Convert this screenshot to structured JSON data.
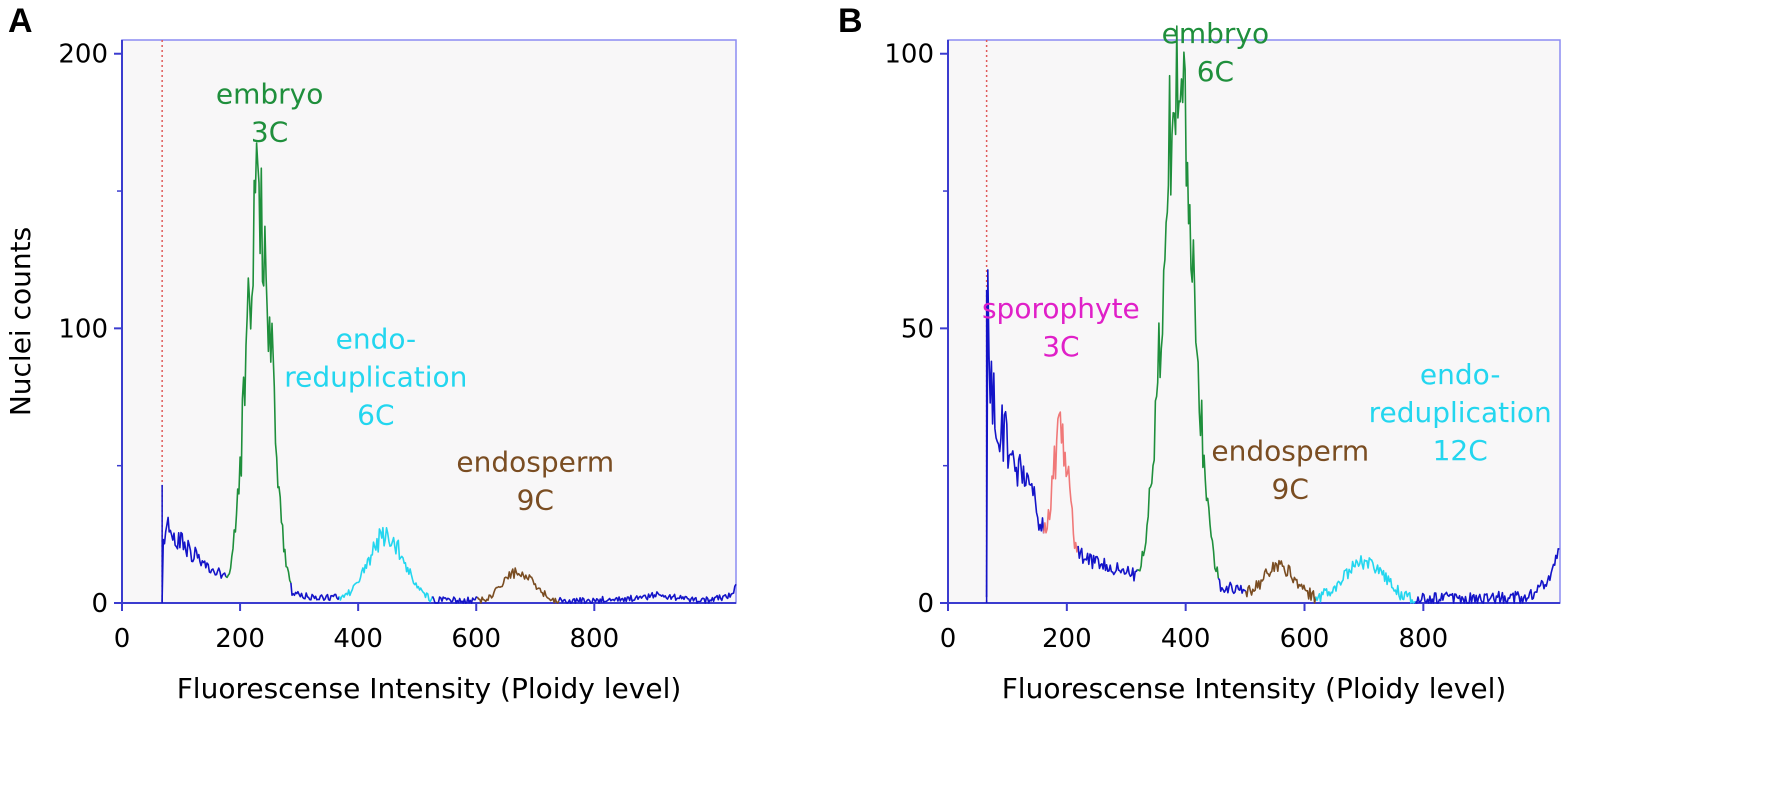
{
  "colors": {
    "background": "#f8f7f8",
    "frame": "#8c8cf2",
    "axis": "#3b3ccf",
    "gate": "#e05a5a",
    "baseline": "#1414c8",
    "embryo": "#1f8f3c",
    "endoreduplication": "#23d6ef",
    "endosperm": "#7a4d22",
    "sporophyte": "#e020c8",
    "sporophyte_peak": "#f07878"
  },
  "chart_data": [
    {
      "type": "area",
      "panel_label": "A",
      "xlabel": "Fluorescense Intensity (Ploidy level)",
      "ylabel": "Nuclei counts",
      "xlim": [
        0,
        1040
      ],
      "ylim": [
        0,
        205
      ],
      "x_ticks": [
        0,
        200,
        400,
        600,
        800
      ],
      "y_ticks": [
        0,
        100,
        200
      ],
      "y_tick_labels": [
        "0",
        "100",
        "200"
      ],
      "y_minor_ticks": [
        50,
        150
      ],
      "gate_x": 68,
      "baseline_points": [
        [
          68,
          0
        ],
        [
          68,
          43
        ],
        [
          70,
          26
        ],
        [
          80,
          27
        ],
        [
          95,
          23
        ],
        [
          110,
          20
        ],
        [
          130,
          16
        ],
        [
          150,
          13
        ],
        [
          170,
          10
        ],
        [
          190,
          8
        ],
        [
          205,
          7
        ],
        [
          225,
          6
        ],
        [
          260,
          6
        ],
        [
          280,
          4
        ],
        [
          300,
          3
        ],
        [
          330,
          2
        ],
        [
          360,
          2
        ],
        [
          390,
          2
        ],
        [
          420,
          2
        ],
        [
          450,
          1.5
        ],
        [
          480,
          1
        ],
        [
          520,
          1
        ],
        [
          560,
          1
        ],
        [
          600,
          1
        ],
        [
          640,
          1
        ],
        [
          680,
          0.8
        ],
        [
          720,
          0.8
        ],
        [
          760,
          0.8
        ],
        [
          800,
          1
        ],
        [
          840,
          1.5
        ],
        [
          880,
          2
        ],
        [
          910,
          3
        ],
        [
          940,
          2
        ],
        [
          970,
          1
        ],
        [
          1000,
          1
        ],
        [
          1030,
          3
        ],
        [
          1040,
          6
        ]
      ],
      "peaks": [
        {
          "key": "embryo",
          "label_lines": [
            "embryo",
            "3C"
          ],
          "ploidy": "3C",
          "center": 232,
          "half_width": 55,
          "height": 145,
          "label_x": 250,
          "label_y": 168
        },
        {
          "key": "endoreduplication",
          "label_lines": [
            "endo-",
            "reduplication",
            "6C"
          ],
          "ploidy": "6C",
          "center": 448,
          "half_width": 80,
          "height": 24,
          "label_x": 430,
          "label_y": 65
        },
        {
          "key": "endosperm",
          "label_lines": [
            "endosperm",
            "9C"
          ],
          "ploidy": "9C",
          "center": 672,
          "half_width": 70,
          "height": 11,
          "label_x": 700,
          "label_y": 34
        }
      ]
    },
    {
      "type": "area",
      "panel_label": "B",
      "xlabel": "Fluorescense Intensity (Ploidy level)",
      "ylabel": "",
      "xlim": [
        0,
        1030
      ],
      "ylim": [
        0,
        102.5
      ],
      "x_ticks": [
        0,
        200,
        400,
        600,
        800
      ],
      "y_ticks": [
        0,
        50,
        100
      ],
      "y_tick_labels": [
        "0",
        "50",
        "100"
      ],
      "y_minor_ticks": [
        25,
        75
      ],
      "gate_x": 65,
      "baseline_points": [
        [
          65,
          0
        ],
        [
          65,
          57
        ],
        [
          70,
          45
        ],
        [
          75,
          38
        ],
        [
          85,
          33
        ],
        [
          100,
          29
        ],
        [
          120,
          25
        ],
        [
          140,
          20
        ],
        [
          155,
          15
        ],
        [
          170,
          12
        ],
        [
          210,
          10
        ],
        [
          230,
          8
        ],
        [
          260,
          7
        ],
        [
          290,
          6
        ],
        [
          320,
          5
        ],
        [
          335,
          6
        ],
        [
          460,
          3
        ],
        [
          480,
          2.5
        ],
        [
          520,
          2
        ],
        [
          560,
          1.5
        ],
        [
          600,
          1
        ],
        [
          640,
          1
        ],
        [
          680,
          1
        ],
        [
          720,
          0.8
        ],
        [
          760,
          0.8
        ],
        [
          800,
          0.8
        ],
        [
          840,
          0.8
        ],
        [
          880,
          0.8
        ],
        [
          920,
          1
        ],
        [
          960,
          1
        ],
        [
          990,
          2
        ],
        [
          1010,
          4
        ],
        [
          1025,
          8
        ],
        [
          1030,
          10
        ]
      ],
      "peaks": [
        {
          "key": "sporophyte",
          "label_lines": [
            "sporophyte",
            "3C"
          ],
          "ploidy": "3C",
          "center": 190,
          "half_width": 38,
          "height": 27,
          "label_x": 190,
          "label_y": 45
        },
        {
          "key": "embryo",
          "label_lines": [
            "embryo",
            "6C"
          ],
          "ploidy": "6C",
          "center": 388,
          "half_width": 68,
          "height": 95,
          "label_x": 450,
          "label_y": 95
        },
        {
          "key": "endosperm",
          "label_lines": [
            "endosperm",
            "9C"
          ],
          "ploidy": "9C",
          "center": 558,
          "half_width": 72,
          "height": 6,
          "label_x": 576,
          "label_y": 19
        },
        {
          "key": "endoreduplication",
          "label_lines": [
            "endo-",
            "reduplication",
            "12C"
          ],
          "ploidy": "12C",
          "center": 700,
          "half_width": 90,
          "height": 7,
          "label_x": 862,
          "label_y": 26
        }
      ]
    }
  ]
}
